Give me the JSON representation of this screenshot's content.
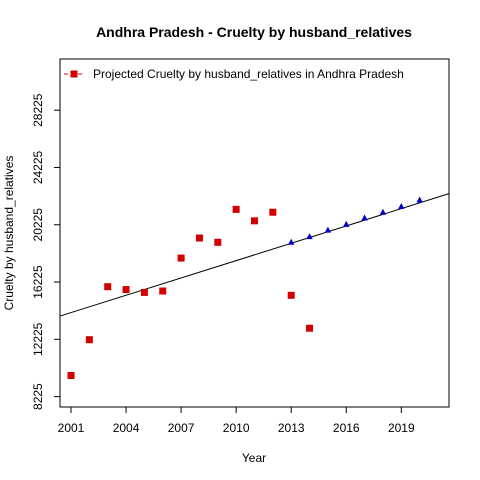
{
  "chart_data": {
    "type": "scatter",
    "title": "Andhra Pradesh  -  Cruelty by husband_relatives",
    "xlabel": "Year",
    "ylabel": "Cruelty by husband_relatives",
    "xlim": [
      2000.4,
      2021.6
    ],
    "ylim": [
      7500,
      31800
    ],
    "xticks": [
      2001,
      2004,
      2007,
      2010,
      2013,
      2016,
      2019
    ],
    "yticks": [
      8225,
      12225,
      16225,
      20225,
      24225,
      28225
    ],
    "legend": {
      "position": "top-left",
      "label": "Projected  Cruelty by husband_relatives  in  Andhra Pradesh"
    },
    "series": [
      {
        "kind": "actual",
        "marker": "square",
        "color": "#d40000",
        "x": [
          2001,
          2002,
          2003,
          2004,
          2005,
          2006,
          2007,
          2008,
          2009,
          2010,
          2011,
          2012,
          2013,
          2014
        ],
        "y": [
          9700,
          12200,
          15900,
          15700,
          15500,
          15600,
          17900,
          19300,
          19000,
          21300,
          20500,
          21100,
          15300,
          13000
        ]
      },
      {
        "kind": "projected",
        "marker": "triangle",
        "color": "#0000cc",
        "x": [
          2013,
          2014,
          2015,
          2016,
          2017,
          2018,
          2019,
          2020
        ],
        "y": [
          19000,
          19400,
          19850,
          20250,
          20700,
          21100,
          21500,
          21950
        ]
      }
    ],
    "trend_line": {
      "x": [
        2000.4,
        2021.6
      ],
      "y": [
        13850,
        22400
      ],
      "color": "#000000"
    }
  }
}
